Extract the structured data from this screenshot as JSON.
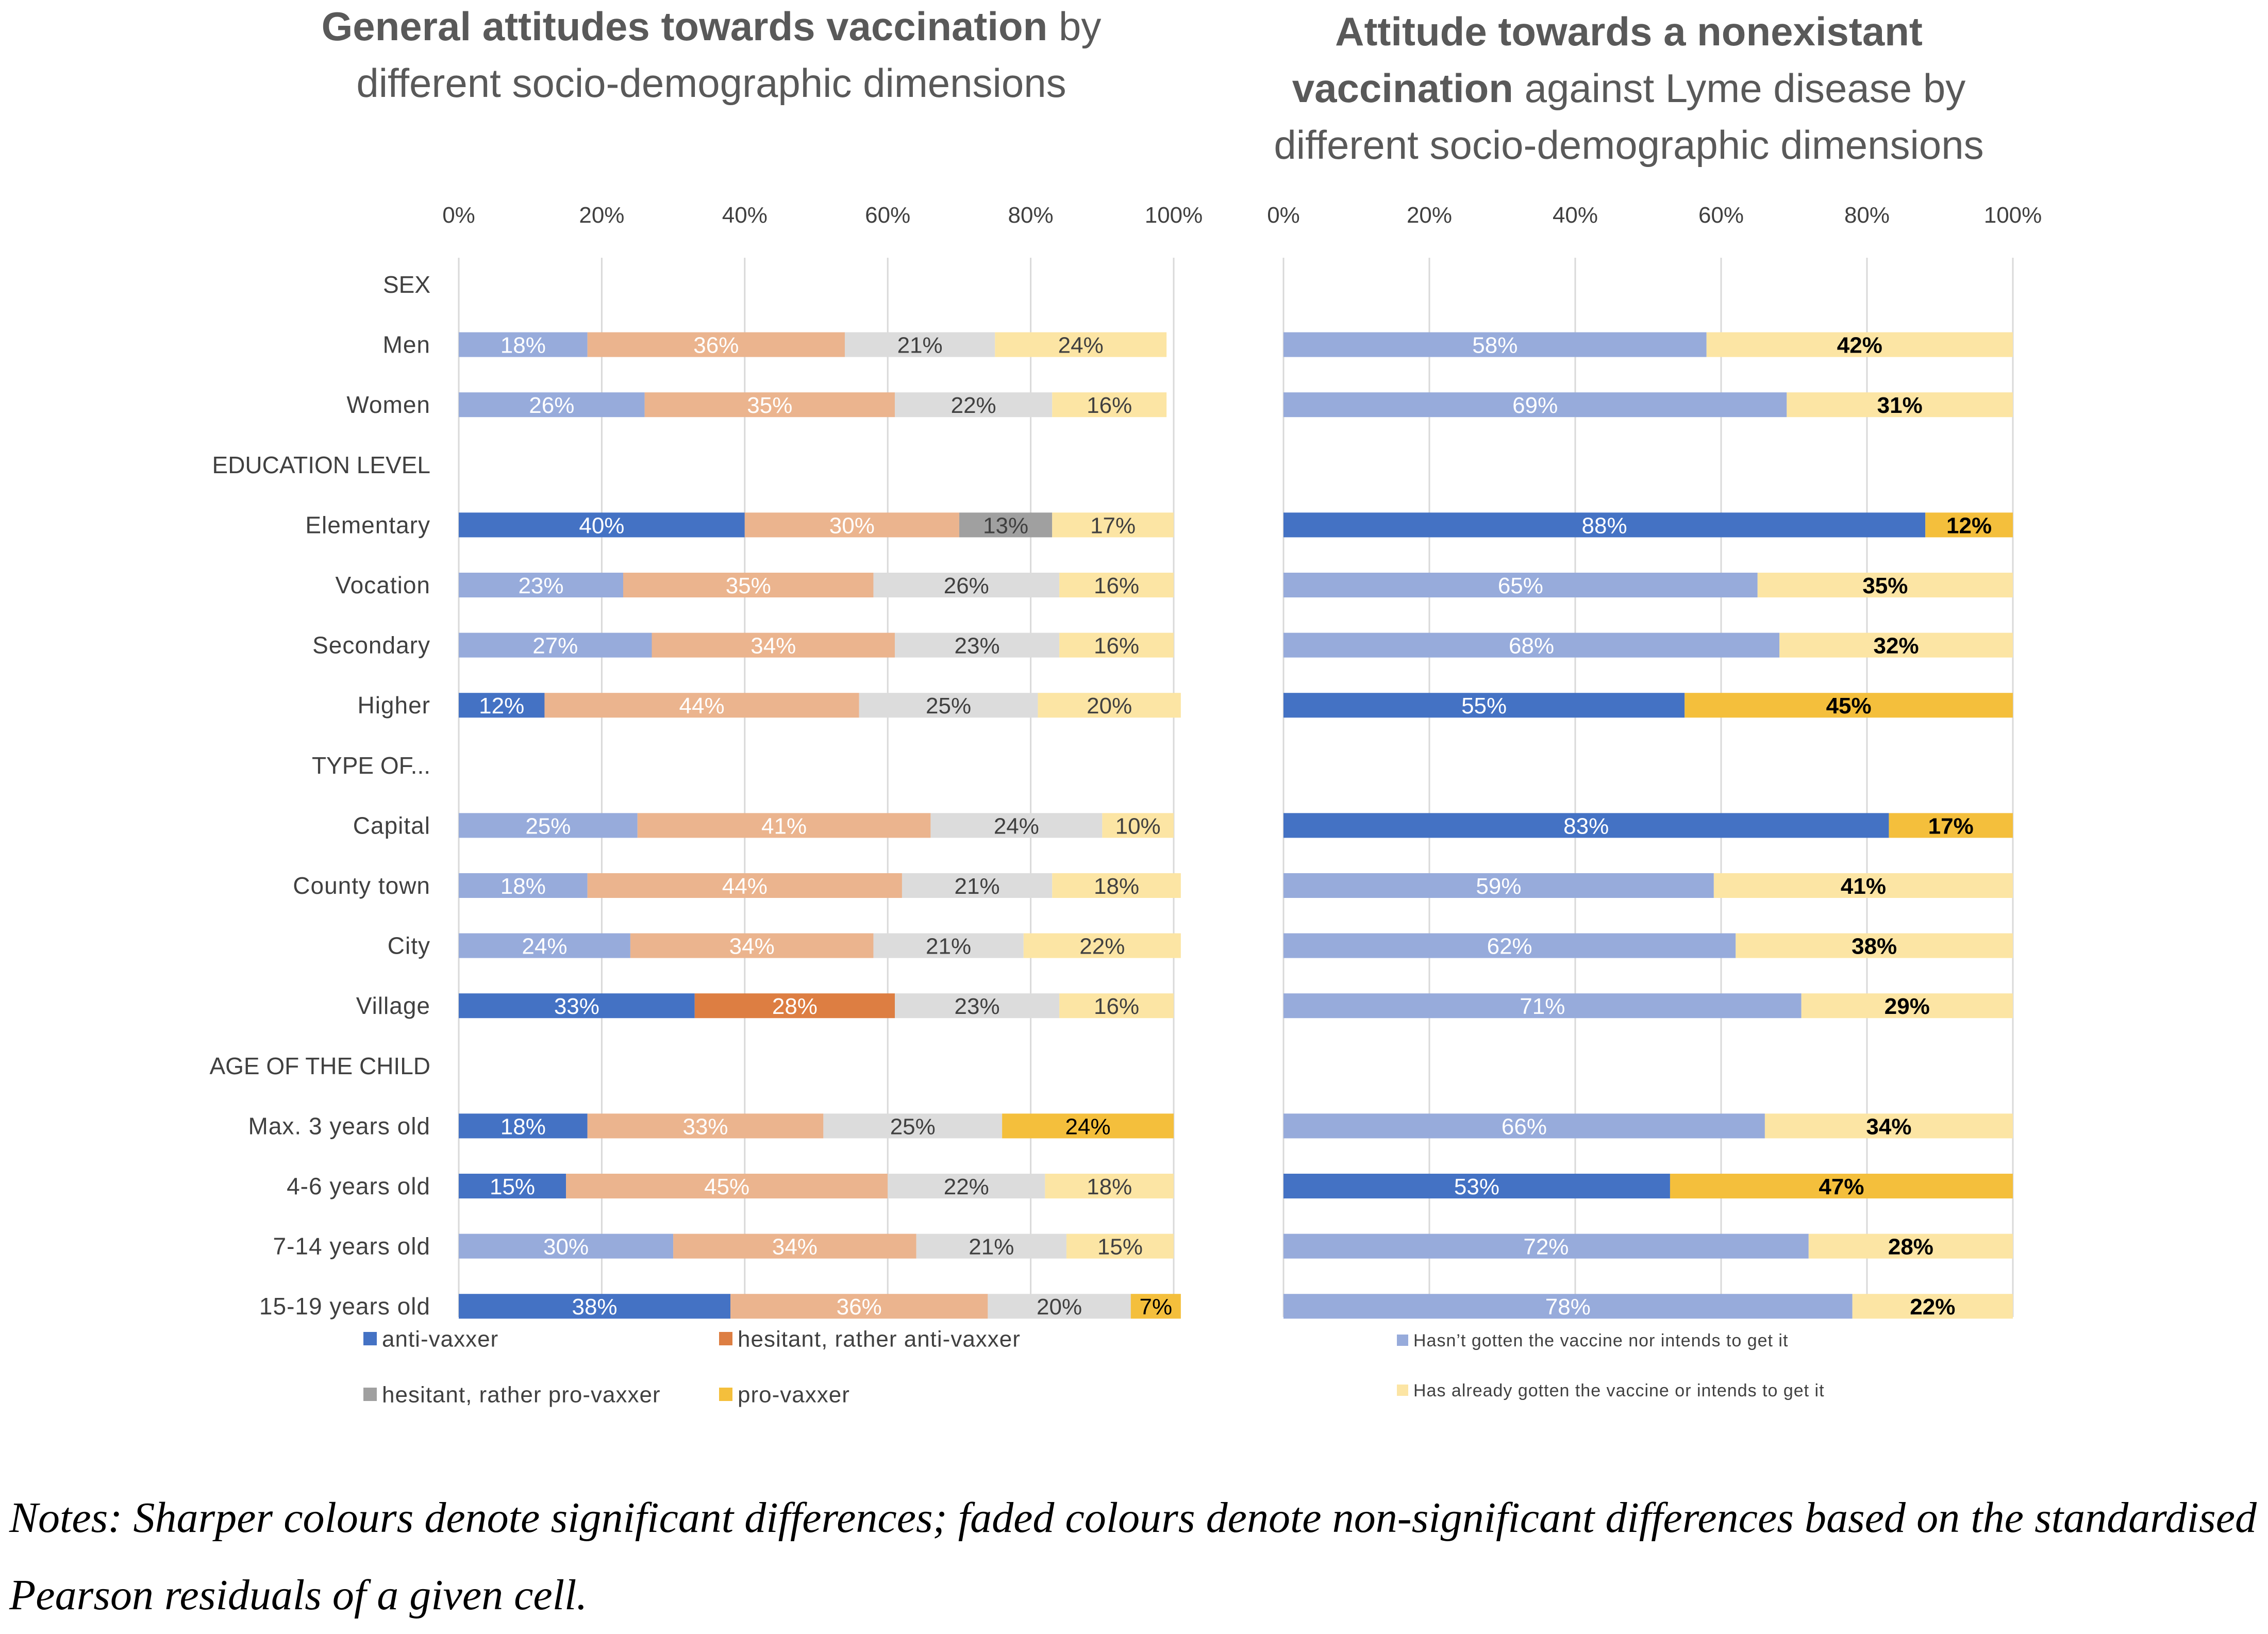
{
  "colors": {
    "anti_sig": "#4472C4",
    "anti_faded": "#97ABDB",
    "hes_anti_sig": "#DD7E42",
    "hes_anti_faded": "#EBB48E",
    "hes_pro_sig": "#A0A0A0",
    "hes_pro_faded": "#DCDCDC",
    "pro_sig": "#F4BF3C",
    "pro_faded": "#FCE5A4",
    "title_text": "#595959",
    "axis_text": "#404040",
    "grid": "#D9D9D9",
    "white_label": "#FFFFFF",
    "dark_label": "#404040",
    "black_label": "#000000"
  },
  "chart_data": [
    {
      "type": "bar",
      "orientation": "horizontal-stacked-100",
      "title_bold": "General attitudes towards vaccination",
      "title_normal": " by",
      "title_line2": "different socio-demographic dimensions",
      "x_ticks": [
        "0%",
        "20%",
        "40%",
        "60%",
        "80%",
        "100%"
      ],
      "xlim": [
        0,
        100
      ],
      "series": [
        {
          "name": "anti-vaxxer",
          "color_key": "anti"
        },
        {
          "name": "hesitant, rather anti-vaxxer",
          "color_key": "hes_anti"
        },
        {
          "name": "hesitant, rather pro-vaxxer",
          "color_key": "hes_pro"
        },
        {
          "name": "pro-vaxxer",
          "color_key": "pro"
        }
      ],
      "categories": [
        {
          "label": "SEX",
          "header": true
        },
        {
          "label": "Men",
          "values": [
            18,
            36,
            21,
            24
          ],
          "labels": [
            "18%",
            "36%",
            "21%",
            "24%"
          ],
          "sig": [
            false,
            false,
            false,
            false
          ]
        },
        {
          "label": "Women",
          "values": [
            26,
            35,
            22,
            16
          ],
          "labels": [
            "26%",
            "35%",
            "22%",
            "16%"
          ],
          "sig": [
            false,
            false,
            false,
            false
          ]
        },
        {
          "label": "EDUCATION LEVEL",
          "header": true
        },
        {
          "label": "Elementary",
          "values": [
            40,
            30,
            13,
            17
          ],
          "labels": [
            "40%",
            "30%",
            "13%",
            "17%"
          ],
          "sig": [
            true,
            false,
            true,
            false
          ]
        },
        {
          "label": "Vocation",
          "values": [
            23,
            35,
            26,
            16
          ],
          "labels": [
            "23%",
            "35%",
            "26%",
            "16%"
          ],
          "sig": [
            false,
            false,
            false,
            false
          ]
        },
        {
          "label": "Secondary",
          "values": [
            27,
            34,
            23,
            16
          ],
          "labels": [
            "27%",
            "34%",
            "23%",
            "16%"
          ],
          "sig": [
            false,
            false,
            false,
            false
          ]
        },
        {
          "label": "Higher",
          "values": [
            12,
            44,
            25,
            20
          ],
          "labels": [
            "12%",
            "44%",
            "25%",
            "20%"
          ],
          "sig": [
            true,
            false,
            false,
            false
          ]
        },
        {
          "label": "TYPE OF...",
          "header": true
        },
        {
          "label": "Capital",
          "values": [
            25,
            41,
            24,
            10
          ],
          "labels": [
            "25%",
            "41%",
            "24%",
            "10%"
          ],
          "sig": [
            false,
            false,
            false,
            false
          ]
        },
        {
          "label": "County town",
          "values": [
            18,
            44,
            21,
            18
          ],
          "labels": [
            "18%",
            "44%",
            "21%",
            "18%"
          ],
          "sig": [
            false,
            false,
            false,
            false
          ]
        },
        {
          "label": "City",
          "values": [
            24,
            34,
            21,
            22
          ],
          "labels": [
            "24%",
            "34%",
            "21%",
            "22%"
          ],
          "sig": [
            false,
            false,
            false,
            false
          ]
        },
        {
          "label": "Village",
          "values": [
            33,
            28,
            23,
            16
          ],
          "labels": [
            "33%",
            "28%",
            "23%",
            "16%"
          ],
          "sig": [
            true,
            true,
            false,
            false
          ]
        },
        {
          "label": "AGE OF THE CHILD",
          "header": true
        },
        {
          "label": "Max. 3 years old",
          "values": [
            18,
            33,
            25,
            24
          ],
          "labels": [
            "18%",
            "33%",
            "25%",
            "24%"
          ],
          "sig": [
            true,
            false,
            false,
            true
          ]
        },
        {
          "label": "4-6 years old",
          "values": [
            15,
            45,
            22,
            18
          ],
          "labels": [
            "15%",
            "45%",
            "22%",
            "18%"
          ],
          "sig": [
            true,
            false,
            false,
            false
          ]
        },
        {
          "label": "7-14 years old",
          "values": [
            30,
            34,
            21,
            15
          ],
          "labels": [
            "30%",
            "34%",
            "21%",
            "15%"
          ],
          "sig": [
            false,
            false,
            false,
            false
          ]
        },
        {
          "label": "15-19 years old",
          "values": [
            38,
            36,
            20,
            7
          ],
          "labels": [
            "38%",
            "36%",
            "20%",
            "7%"
          ],
          "sig": [
            true,
            false,
            false,
            true
          ]
        }
      ],
      "legend": [
        {
          "label": "anti-vaxxer",
          "color_key": "anti_sig"
        },
        {
          "label": "hesitant, rather anti-vaxxer",
          "color_key": "hes_anti_sig"
        },
        {
          "label": "hesitant, rather pro-vaxxer",
          "color_key": "hes_pro_sig"
        },
        {
          "label": "pro-vaxxer",
          "color_key": "pro_sig"
        }
      ],
      "legend_position": "bottom"
    },
    {
      "type": "bar",
      "orientation": "horizontal-stacked-100",
      "title_line1": "Attitude towards a nonexistant",
      "title_bold": "vaccination",
      "title_normal": " against Lyme disease by",
      "title_line3": "different socio-demographic dimensions",
      "x_ticks": [
        "0%",
        "20%",
        "40%",
        "60%",
        "80%",
        "100%"
      ],
      "xlim": [
        0,
        100
      ],
      "series": [
        {
          "name": "Hasn’t gotten the vaccine nor intends to get it",
          "color_key": "anti"
        },
        {
          "name": "Has already gotten the vaccine or intends to get it",
          "color_key": "pro"
        }
      ],
      "categories": [
        {
          "label": "SEX",
          "header": true
        },
        {
          "label": "Men",
          "values": [
            58,
            42
          ],
          "labels": [
            "58%",
            "42%"
          ],
          "sig": [
            false,
            false
          ]
        },
        {
          "label": "Women",
          "values": [
            69,
            31
          ],
          "labels": [
            "69%",
            "31%"
          ],
          "sig": [
            false,
            false
          ]
        },
        {
          "label": "EDUCATION LEVEL",
          "header": true
        },
        {
          "label": "Elementary",
          "values": [
            88,
            12
          ],
          "labels": [
            "88%",
            "12%"
          ],
          "sig": [
            true,
            true
          ]
        },
        {
          "label": "Vocation",
          "values": [
            65,
            35
          ],
          "labels": [
            "65%",
            "35%"
          ],
          "sig": [
            false,
            false
          ]
        },
        {
          "label": "Secondary",
          "values": [
            68,
            32
          ],
          "labels": [
            "68%",
            "32%"
          ],
          "sig": [
            false,
            false
          ]
        },
        {
          "label": "Higher",
          "values": [
            55,
            45
          ],
          "labels": [
            "55%",
            "45%"
          ],
          "sig": [
            true,
            true
          ]
        },
        {
          "label": "TYPE OF...",
          "header": true
        },
        {
          "label": "Capital",
          "values": [
            83,
            17
          ],
          "labels": [
            "83%",
            "17%"
          ],
          "sig": [
            true,
            true
          ]
        },
        {
          "label": "County town",
          "values": [
            59,
            41
          ],
          "labels": [
            "59%",
            "41%"
          ],
          "sig": [
            false,
            false
          ]
        },
        {
          "label": "City",
          "values": [
            62,
            38
          ],
          "labels": [
            "62%",
            "38%"
          ],
          "sig": [
            false,
            false
          ]
        },
        {
          "label": "Village",
          "values": [
            71,
            29
          ],
          "labels": [
            "71%",
            "29%"
          ],
          "sig": [
            false,
            false
          ]
        },
        {
          "label": "AGE OF THE CHILD",
          "header": true
        },
        {
          "label": "Max. 3 years old",
          "values": [
            66,
            34
          ],
          "labels": [
            "66%",
            "34%"
          ],
          "sig": [
            false,
            false
          ]
        },
        {
          "label": "4-6 years old",
          "values": [
            53,
            47
          ],
          "labels": [
            "53%",
            "47%"
          ],
          "sig": [
            true,
            true
          ]
        },
        {
          "label": "7-14 years old",
          "values": [
            72,
            28
          ],
          "labels": [
            "72%",
            "28%"
          ],
          "sig": [
            false,
            false
          ]
        },
        {
          "label": "15-19 years old",
          "values": [
            78,
            22
          ],
          "labels": [
            "78%",
            "22%"
          ],
          "sig": [
            false,
            false
          ]
        }
      ],
      "legend": [
        {
          "label": "Hasn’t gotten the vaccine nor intends to get it",
          "color_key": "anti_faded"
        },
        {
          "label": "Has already gotten the vaccine or intends to get it",
          "color_key": "pro_faded"
        }
      ],
      "legend_position": "bottom"
    }
  ],
  "notes": {
    "line1": "Notes: Sharper colours denote significant differences; faded colours denote non-significant differences based on the standardised",
    "line2": "Pearson residuals of a given cell."
  }
}
